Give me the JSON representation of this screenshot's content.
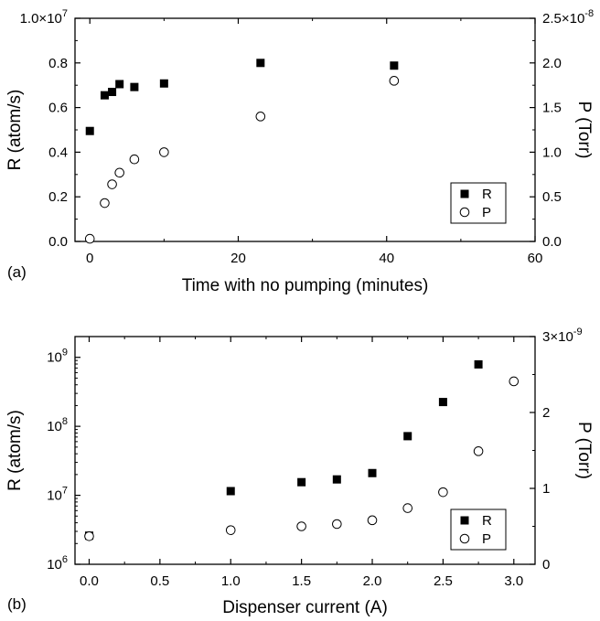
{
  "chart_data": [
    {
      "type": "scatter",
      "panel_label": "(a)",
      "xlabel": "Time with no pumping (minutes)",
      "ylabel_left": "R (atom/s)",
      "ylabel_right": "P (Torr)",
      "xlim": [
        -2,
        60
      ],
      "ylim_left": [
        0,
        10000000
      ],
      "ylim_right": [
        0,
        2.5e-08
      ],
      "x_ticks": [
        0,
        20,
        40,
        60
      ],
      "x_tick_labels": [
        "0",
        "20",
        "40",
        "60"
      ],
      "y_left_ticks": [
        0,
        2000000,
        4000000,
        6000000,
        8000000,
        10000000
      ],
      "y_left_tick_labels": [
        "0.0",
        "0.2",
        "0.4",
        "0.6",
        "0.8",
        "1.0×10"
      ],
      "y_left_top_exponent": "7",
      "y_right_ticks": [
        0,
        5e-09,
        1e-08,
        1.5e-08,
        2e-08,
        2.5e-08
      ],
      "y_right_tick_labels": [
        "0.0",
        "0.5",
        "1.0",
        "1.5",
        "2.0",
        "2.5×10"
      ],
      "y_right_top_exponent": "-8",
      "legend_position": "bottom-right",
      "series": [
        {
          "name": "R",
          "axis": "left",
          "marker": "filled-square",
          "x": [
            0,
            2,
            3,
            4,
            6,
            10,
            23,
            41
          ],
          "y": [
            4950000,
            6550000,
            6700000,
            7050000,
            6920000,
            7080000,
            8000000,
            7880000
          ]
        },
        {
          "name": "P",
          "axis": "right",
          "marker": "open-circle",
          "x": [
            0,
            2,
            3,
            4,
            6,
            10,
            23,
            41
          ],
          "y": [
            3e-10,
            4.3e-09,
            6.4e-09,
            7.7e-09,
            9.2e-09,
            1e-08,
            1.4e-08,
            1.8e-08
          ]
        }
      ]
    },
    {
      "type": "scatter",
      "panel_label": "(b)",
      "xlabel": "Dispenser current (A)",
      "ylabel_left": "R (atom/s)",
      "ylabel_right": "P (Torr)",
      "xlim": [
        -0.1,
        3.15
      ],
      "y_left_scale": "log",
      "ylim_left": [
        1000000,
        2000000000
      ],
      "ylim_right": [
        0,
        3e-09
      ],
      "x_ticks": [
        0,
        0.5,
        1,
        1.5,
        2,
        2.5,
        3
      ],
      "x_tick_labels": [
        "0.0",
        "0.5",
        "1.0",
        "1.5",
        "2.0",
        "2.5",
        "3.0"
      ],
      "y_left_ticks": [
        1000000,
        10000000,
        100000000,
        1000000000
      ],
      "y_left_tick_labels": [
        "10",
        "10",
        "10",
        "10"
      ],
      "y_left_tick_exponents": [
        "6",
        "7",
        "8",
        "9"
      ],
      "y_right_ticks": [
        0,
        1e-09,
        2e-09,
        3e-09
      ],
      "y_right_tick_labels": [
        "0",
        "1",
        "2",
        "3×10"
      ],
      "y_right_top_exponent": "-9",
      "legend_position": "bottom-right",
      "series": [
        {
          "name": "R",
          "axis": "left",
          "marker": "filled-square",
          "x": [
            0,
            1,
            1.5,
            1.75,
            2,
            2.25,
            2.5,
            2.75
          ],
          "y": [
            2600000,
            11500000,
            15500000,
            17000000,
            21000000,
            72000000,
            225000000,
            790000000
          ]
        },
        {
          "name": "P",
          "axis": "right",
          "marker": "open-circle",
          "x": [
            0,
            1,
            1.5,
            1.75,
            2,
            2.25,
            2.5,
            2.75,
            3
          ],
          "y": [
            3.7e-10,
            4.5e-10,
            5e-10,
            5.3e-10,
            5.8e-10,
            7.4e-10,
            9.5e-10,
            1.49e-09,
            2.41e-09
          ]
        }
      ]
    }
  ]
}
